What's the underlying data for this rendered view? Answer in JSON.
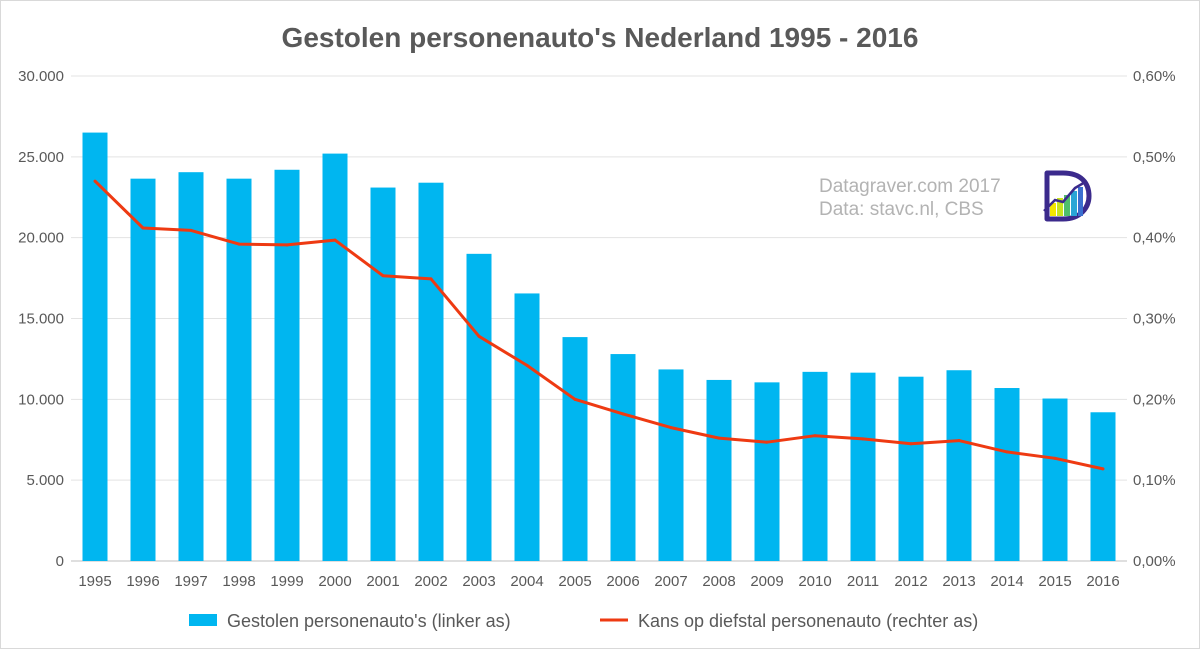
{
  "chart_data": {
    "type": "bar",
    "title": "Gestolen personenauto's Nederland 1995 - 2016",
    "categories": [
      "1995",
      "1996",
      "1997",
      "1998",
      "1999",
      "2000",
      "2001",
      "2002",
      "2003",
      "2004",
      "2005",
      "2006",
      "2007",
      "2008",
      "2009",
      "2010",
      "2011",
      "2012",
      "2013",
      "2014",
      "2015",
      "2016"
    ],
    "series": [
      {
        "name": "Gestolen personenauto's (linker as)",
        "type": "bar",
        "axis": "left",
        "color": "#00b6f0",
        "values": [
          26500,
          23650,
          24050,
          23650,
          24200,
          25200,
          23100,
          23400,
          19000,
          16550,
          13850,
          12800,
          11850,
          11200,
          11050,
          11700,
          11650,
          11400,
          11800,
          10700,
          10050,
          9200
        ]
      },
      {
        "name": "Kans op diefstal personenauto (rechter as)",
        "type": "line",
        "axis": "right",
        "color": "#ee3a12",
        "values": [
          0.47,
          0.412,
          0.409,
          0.392,
          0.391,
          0.397,
          0.353,
          0.349,
          0.278,
          0.242,
          0.2,
          0.182,
          0.165,
          0.152,
          0.147,
          0.155,
          0.151,
          0.145,
          0.149,
          0.135,
          0.127,
          0.114
        ]
      }
    ],
    "y_left": {
      "min": 0,
      "max": 30000,
      "ticks": [
        0,
        5000,
        10000,
        15000,
        20000,
        25000,
        30000
      ],
      "tick_labels": [
        "0",
        "5.000",
        "10.000",
        "15.000",
        "20.000",
        "25.000",
        "30.000"
      ]
    },
    "y_right": {
      "min": 0,
      "max": 0.6,
      "ticks": [
        0,
        0.1,
        0.2,
        0.3,
        0.4,
        0.5,
        0.6
      ],
      "tick_labels": [
        "0,00%",
        "0,10%",
        "0,20%",
        "0,30%",
        "0,40%",
        "0,50%",
        "0,60%"
      ]
    },
    "grid": true,
    "legend_position": "bottom",
    "annotations": [
      "Datagraver.com 2017",
      "Data: stavc.nl, CBS"
    ]
  },
  "colors": {
    "bar": "#00b6f0",
    "line": "#ee3a12",
    "text": "#595959",
    "grid": "#e3e3e3"
  }
}
